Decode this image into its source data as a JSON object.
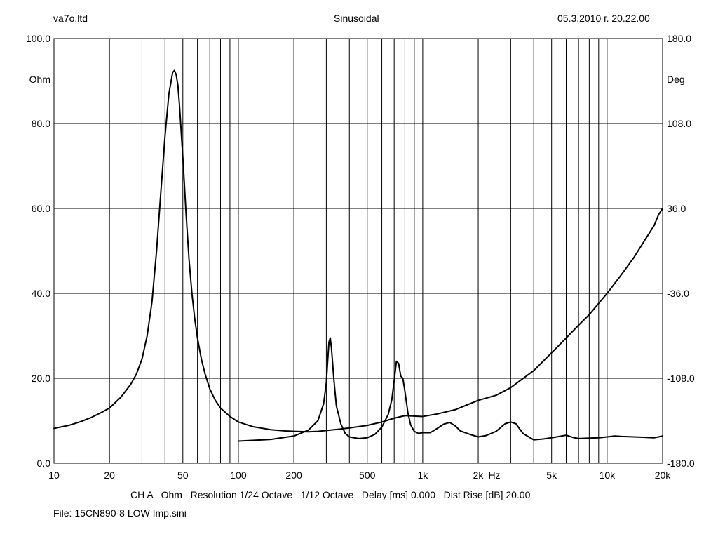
{
  "header": {
    "left": "va7o.ltd",
    "center": "Sinusoidal",
    "right": "05.3.2010 г. 20.22.00"
  },
  "footer": {
    "info": "CH A   Ohm   Resolution 1/24 Octave   1/12 Octave   Delay [ms] 0.000   Dist Rise [dB] 20.00",
    "file": "File: 15CN890-8 LOW Imp.sini"
  },
  "chart_data": {
    "type": "line",
    "x_scale": "log",
    "xlim": [
      10,
      20000
    ],
    "ylim": [
      0,
      100
    ],
    "y2lim": [
      -180,
      180
    ],
    "ylabel": "Ohm",
    "y2label": "Deg",
    "xunit": "Hz",
    "grid": true,
    "x_ticks": [
      10,
      20,
      50,
      100,
      200,
      500,
      1000,
      2000,
      5000,
      10000,
      20000
    ],
    "x_tick_labels": [
      "10",
      "20",
      "50",
      "100",
      "200",
      "500",
      "1k",
      "2k",
      "5k",
      "10k",
      "20k"
    ],
    "y_ticks": [
      0,
      20,
      40,
      60,
      80,
      100
    ],
    "y_tick_labels": [
      "0.0",
      "20.0",
      "40.0",
      "60.0",
      "80.0",
      "100.0"
    ],
    "y2_ticks": [
      -180,
      -108,
      -36,
      36,
      108,
      180
    ],
    "y2_tick_labels": [
      "-180.0",
      "-108.0",
      "-36.0",
      "36.0",
      "108.0",
      "180.0"
    ],
    "series": [
      {
        "name": "",
        "axis": "left",
        "color": "#000000",
        "x": [
          10,
          12,
          14,
          16,
          18,
          20,
          23,
          26,
          28,
          30,
          32,
          34,
          36,
          38,
          40,
          42,
          44,
          45,
          46,
          47,
          48,
          50,
          52,
          54,
          56,
          58,
          60,
          63,
          66,
          70,
          75,
          80,
          90,
          100,
          120,
          150,
          180,
          200,
          240,
          270,
          300,
          350,
          400,
          500,
          600,
          700,
          800,
          900,
          1000,
          1200,
          1500,
          2000,
          2500,
          3000,
          4000,
          5000,
          6000,
          7000,
          8000,
          10000,
          12000,
          14000,
          16000,
          18000,
          19000,
          20000
        ],
        "y": [
          8.2,
          8.9,
          9.8,
          10.8,
          11.9,
          13.0,
          15.5,
          18.5,
          21.0,
          24.5,
          30.0,
          38.0,
          50.0,
          64.0,
          77.0,
          87.0,
          92.0,
          92.5,
          91.5,
          89.0,
          84.0,
          72.0,
          59.0,
          48.0,
          40.0,
          34.0,
          29.5,
          24.5,
          21.0,
          17.5,
          14.8,
          13.0,
          11.0,
          9.7,
          8.6,
          7.9,
          7.6,
          7.5,
          7.4,
          7.5,
          7.7,
          8.0,
          8.3,
          8.9,
          9.7,
          10.6,
          11.2,
          11.1,
          11.0,
          11.6,
          12.6,
          14.8,
          16.0,
          17.8,
          21.8,
          26.0,
          29.5,
          32.5,
          35.0,
          40.0,
          44.5,
          48.5,
          52.5,
          56.0,
          58.5,
          60.0
        ]
      },
      {
        "name": "",
        "axis": "left",
        "color": "#000000",
        "x": [
          100,
          150,
          200,
          240,
          270,
          290,
          300,
          305,
          310,
          315,
          320,
          330,
          340,
          360,
          380,
          400,
          450,
          500,
          550,
          600,
          650,
          680,
          700,
          720,
          740,
          760,
          780,
          800,
          830,
          860,
          900,
          950,
          1000,
          1100,
          1200,
          1300,
          1400,
          1500,
          1600,
          1800,
          2000,
          2200,
          2500,
          2800,
          3000,
          3200,
          3500,
          4000,
          4500,
          5000,
          5500,
          6000,
          6500,
          7000,
          8000,
          9000,
          10000,
          11000,
          12000,
          14000,
          16000,
          18000,
          19000,
          20000
        ],
        "y": [
          5.2,
          5.6,
          6.4,
          7.8,
          10.0,
          14.0,
          19.0,
          24.0,
          28.5,
          29.5,
          27.0,
          19.5,
          13.5,
          9.2,
          7.0,
          6.2,
          5.8,
          6.0,
          6.8,
          8.5,
          11.5,
          15.0,
          19.5,
          24.0,
          23.5,
          20.5,
          20.0,
          17.0,
          12.0,
          9.0,
          7.5,
          7.0,
          7.2,
          7.2,
          8.2,
          9.2,
          9.6,
          8.8,
          7.6,
          6.8,
          6.2,
          6.5,
          7.5,
          9.3,
          9.7,
          9.3,
          7.0,
          5.5,
          5.7,
          6.0,
          6.3,
          6.6,
          6.1,
          5.8,
          5.9,
          6.0,
          6.2,
          6.4,
          6.3,
          6.2,
          6.1,
          6.0,
          6.2,
          6.4
        ]
      }
    ]
  }
}
